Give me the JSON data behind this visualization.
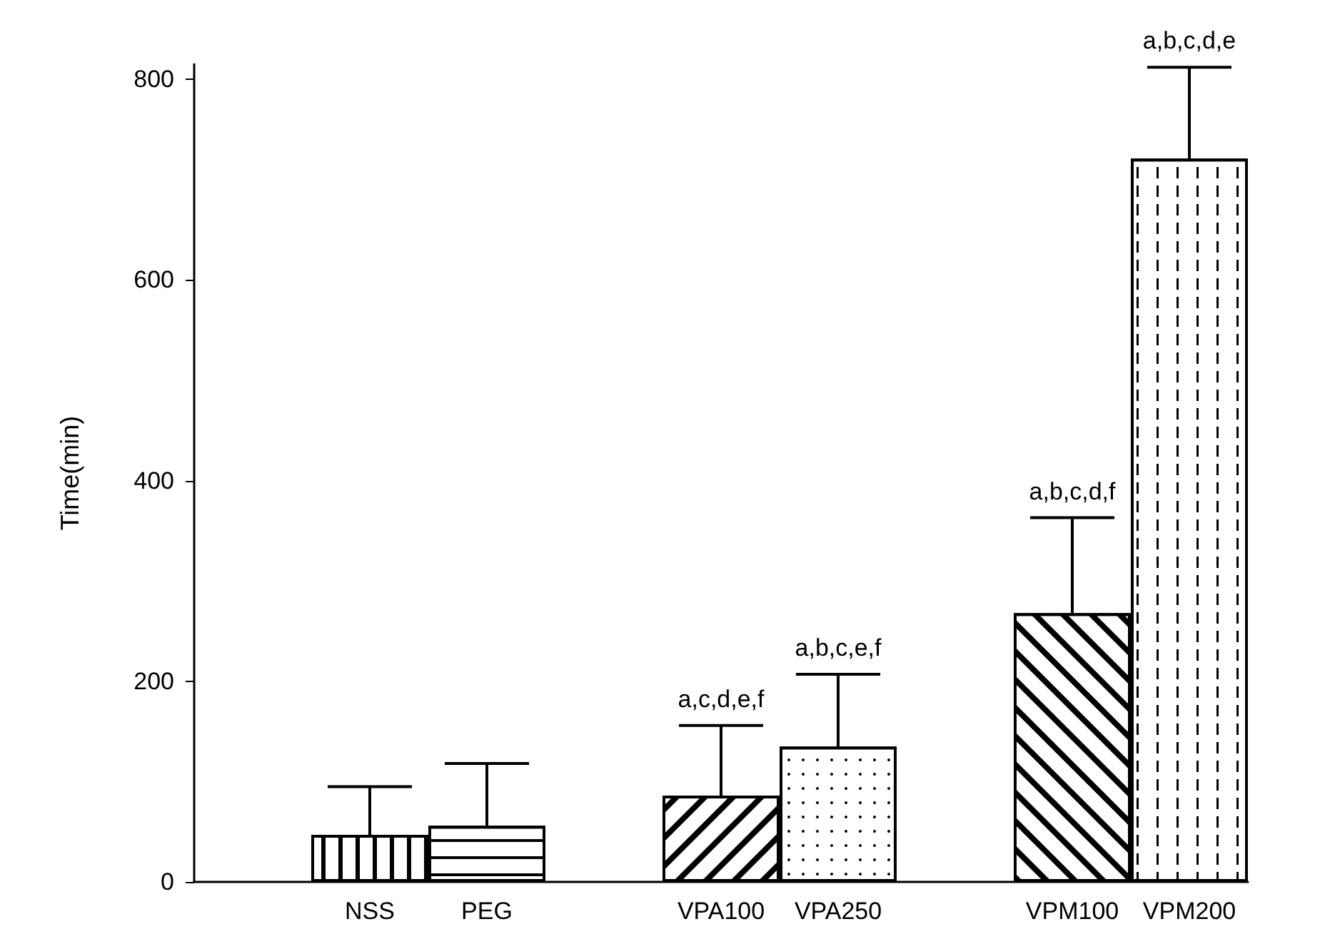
{
  "chart_data": {
    "type": "bar",
    "categories": [
      null,
      "NSS",
      "PEG",
      null,
      "VPA100",
      "VPA250",
      null,
      "VPM100",
      "VPM200"
    ],
    "values": [
      null,
      47,
      56,
      null,
      86,
      135,
      null,
      268,
      721
    ],
    "errors": [
      null,
      [
        47,
        95
      ],
      [
        56,
        118
      ],
      null,
      [
        86,
        156
      ],
      [
        135,
        207
      ],
      null,
      [
        268,
        363
      ],
      [
        721,
        812
      ]
    ],
    "colors": [
      null,
      "#ffffff",
      "#ffffff",
      null,
      "#ffffff",
      "#ffffff",
      null,
      "#ffffff",
      "#ffffff"
    ],
    "ylabel": "Time(min)",
    "ylim": [
      0,
      815
    ],
    "yticks": [
      0,
      200,
      400,
      600,
      800
    ],
    "grid": false,
    "annotations": [
      {
        "text": "a,c,d,e,f",
        "x": "VPA100",
        "y": 156
      },
      {
        "text": "a,b,c,e,f",
        "x": "VPA250",
        "y": 207
      },
      {
        "text": "a,b,c,d,f",
        "x": "VPM100",
        "y": 363
      },
      {
        "text": "a,b,c,d,e",
        "x": "VPM200",
        "y": 812
      }
    ]
  }
}
